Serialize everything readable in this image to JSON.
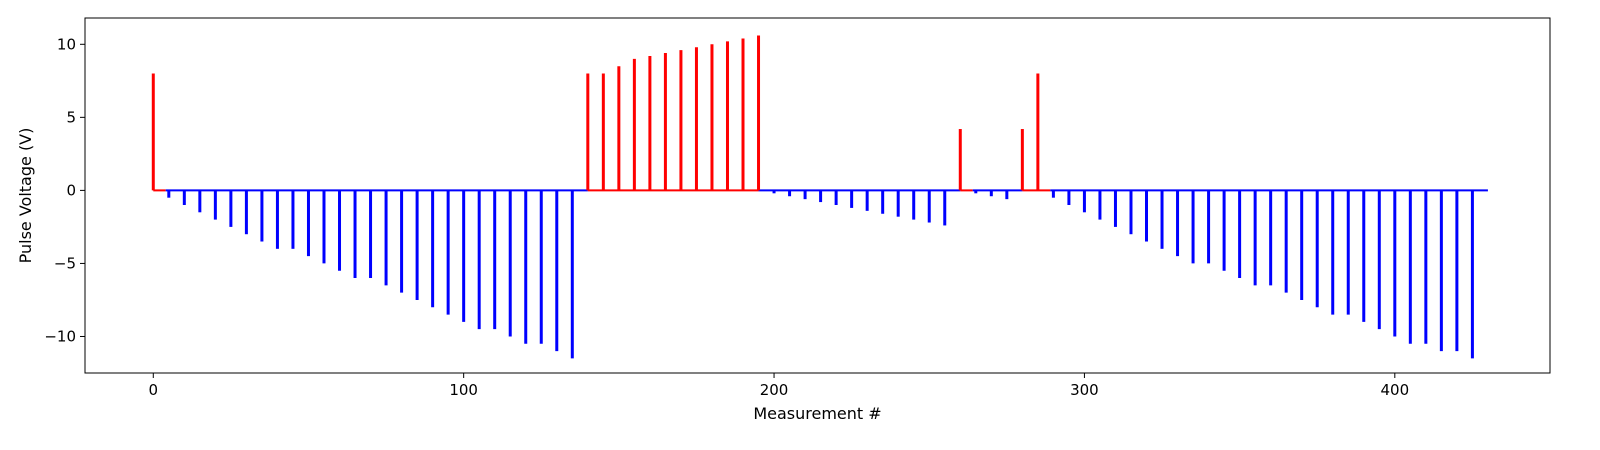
{
  "chart_data": {
    "type": "bar",
    "title": "",
    "xlabel": "Measurement #",
    "ylabel": "Pulse Voltage (V)",
    "xlim": [
      -22,
      450
    ],
    "ylim": [
      -12.5,
      11.8
    ],
    "xticks": [
      0,
      100,
      200,
      300,
      400
    ],
    "yticks": [
      -10,
      -5,
      0,
      5,
      10
    ],
    "grid": false,
    "legend": "none",
    "colors": {
      "positive": "#ff0000",
      "negative": "#0000ff"
    },
    "series": [
      {
        "color": "#ff0000",
        "x": [
          0,
          140,
          145,
          150,
          155,
          160,
          165,
          170,
          175,
          180,
          185,
          190,
          195,
          260,
          280,
          285
        ],
        "values": [
          8.0,
          8.0,
          8.0,
          8.5,
          9.0,
          9.2,
          9.4,
          9.6,
          9.8,
          10.0,
          10.2,
          10.4,
          10.6,
          4.2,
          4.2,
          8.0
        ]
      },
      {
        "color": "#0000ff",
        "x": [
          5,
          10,
          15,
          20,
          25,
          30,
          35,
          40,
          45,
          50,
          55,
          60,
          65,
          70,
          75,
          80,
          85,
          90,
          95,
          100,
          105,
          110,
          115,
          120,
          125,
          130,
          135,
          200,
          205,
          210,
          215,
          220,
          225,
          230,
          235,
          240,
          245,
          250,
          255,
          265,
          270,
          275,
          290,
          295,
          300,
          305,
          310,
          315,
          320,
          325,
          330,
          335,
          340,
          345,
          350,
          355,
          360,
          365,
          370,
          375,
          380,
          385,
          390,
          395,
          400,
          405,
          410,
          415,
          420,
          425
        ],
        "values": [
          -0.5,
          -1.0,
          -1.5,
          -2.0,
          -2.5,
          -3.0,
          -3.5,
          -4.0,
          -4.0,
          -4.5,
          -5.0,
          -5.5,
          -6.0,
          -6.0,
          -6.5,
          -7.0,
          -7.5,
          -8.0,
          -8.5,
          -9.0,
          -9.5,
          -9.5,
          -10.0,
          -10.5,
          -10.5,
          -11.0,
          -11.5,
          -0.2,
          -0.4,
          -0.6,
          -0.8,
          -1.0,
          -1.2,
          -1.4,
          -1.6,
          -1.8,
          -2.0,
          -2.2,
          -2.4,
          -0.2,
          -0.4,
          -0.6,
          -0.5,
          -1.0,
          -1.5,
          -2.0,
          -2.5,
          -3.0,
          -3.5,
          -4.0,
          -4.5,
          -5.0,
          -5.0,
          -5.5,
          -6.0,
          -6.5,
          -6.5,
          -7.0,
          -7.5,
          -8.0,
          -8.5,
          -8.5,
          -9.0,
          -9.5,
          -10.0,
          -10.5,
          -10.5,
          -11.0,
          -11.0,
          -11.5
        ]
      }
    ],
    "baseline": [
      {
        "color": "#ff0000",
        "segments": [
          [
            0,
            4
          ],
          [
            140,
            195
          ],
          [
            260,
            264
          ],
          [
            280,
            289
          ]
        ]
      },
      {
        "color": "#0000ff",
        "segments": [
          [
            4,
            140
          ],
          [
            195,
            260
          ],
          [
            264,
            280
          ],
          [
            289,
            430
          ]
        ]
      }
    ]
  }
}
